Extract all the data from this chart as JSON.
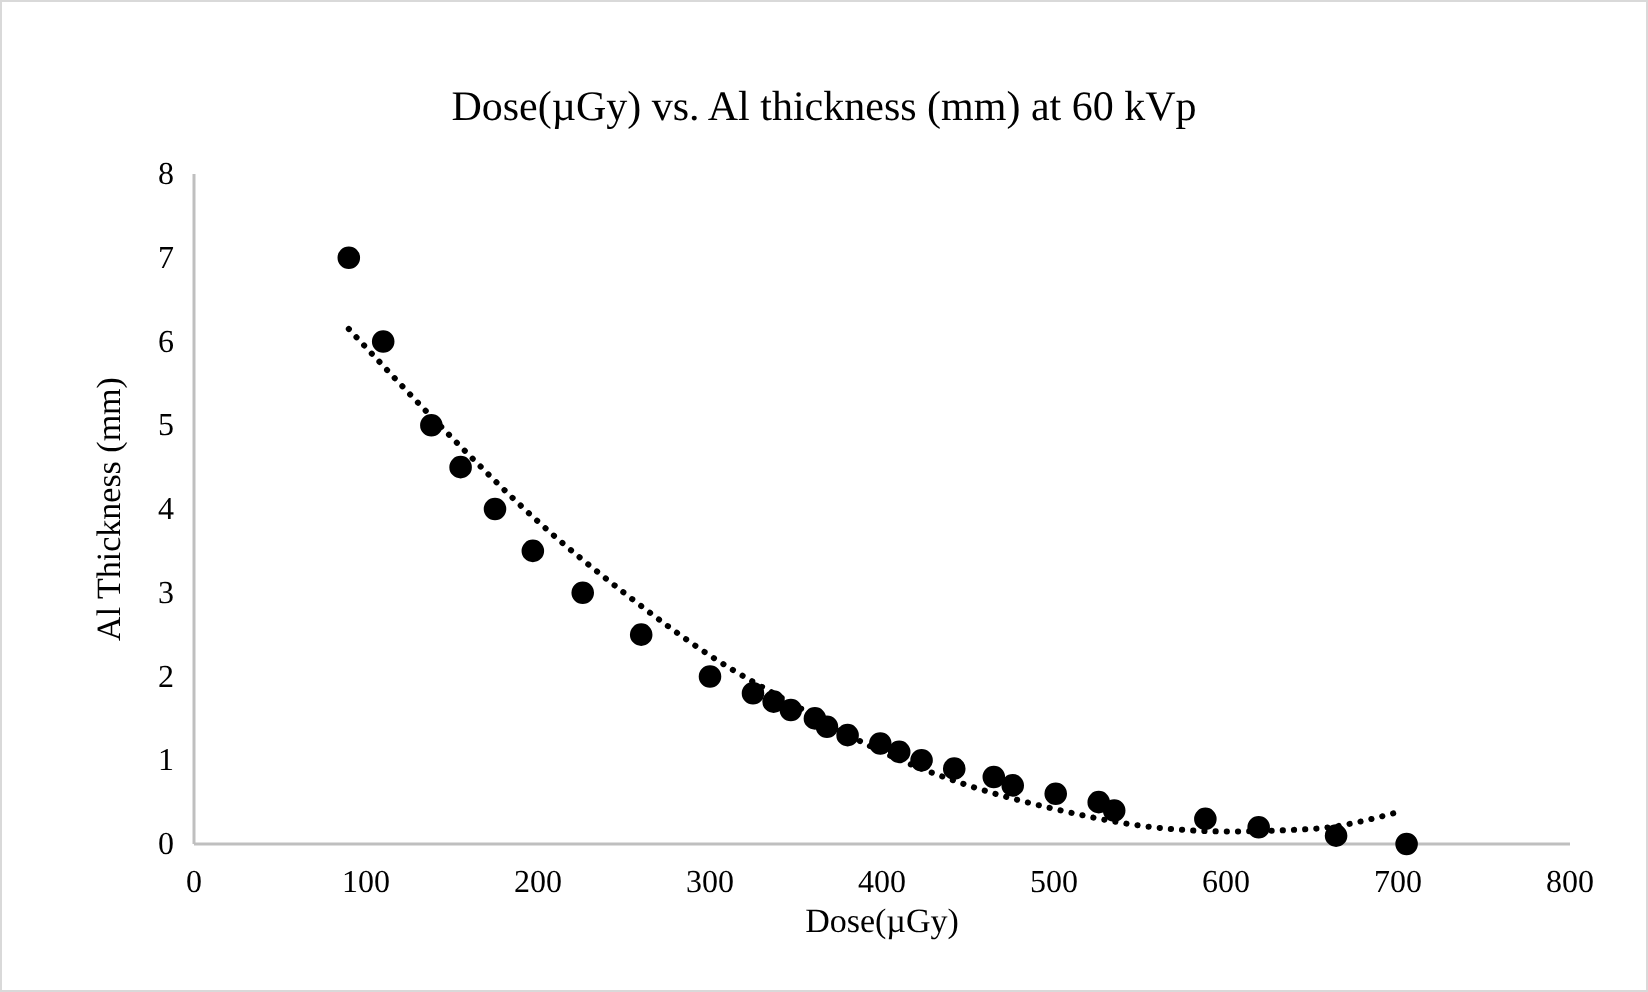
{
  "chart_data": {
    "type": "scatter",
    "title": "Dose(µGy) vs. Al thickness (mm) at 60 kVp",
    "xlabel": "Dose(µGy)",
    "ylabel": "Al Thickness (mm)",
    "xlim": [
      0,
      800
    ],
    "xticks": [
      0,
      100,
      200,
      300,
      400,
      500,
      600,
      700,
      800
    ],
    "ylim": [
      0,
      8
    ],
    "yticks": [
      0,
      1,
      2,
      3,
      4,
      5,
      6,
      7,
      8
    ],
    "grid": false,
    "marker": "circle",
    "series": [
      {
        "color": "#000000",
        "x": [
          90,
          110,
          138,
          155,
          175,
          197,
          226,
          260,
          300,
          325,
          337,
          347,
          361,
          368,
          380,
          399,
          410,
          423,
          442,
          465,
          476,
          501,
          526,
          535,
          588,
          619,
          664,
          705
        ],
        "values": [
          7,
          6,
          5,
          4.5,
          4,
          3.5,
          3,
          2.5,
          2,
          1.8,
          1.7,
          1.6,
          1.5,
          1.4,
          1.3,
          1.2,
          1.1,
          1.0,
          0.9,
          0.8,
          0.7,
          0.6,
          0.5,
          0.4,
          0.3,
          0.2,
          0.1,
          0
        ]
      },
      {
        "type": "line",
        "color": "#000000",
        "marker": "none",
        "line_style": "dotted",
        "x": [
          90,
          150,
          200,
          250,
          300,
          350,
          400,
          450,
          500,
          550,
          600,
          650,
          700
        ],
        "values": [
          6.15,
          4.85,
          3.85,
          3.0,
          2.25,
          1.65,
          1.1,
          0.7,
          0.42,
          0.22,
          0.15,
          0.18,
          0.38
        ]
      }
    ]
  }
}
